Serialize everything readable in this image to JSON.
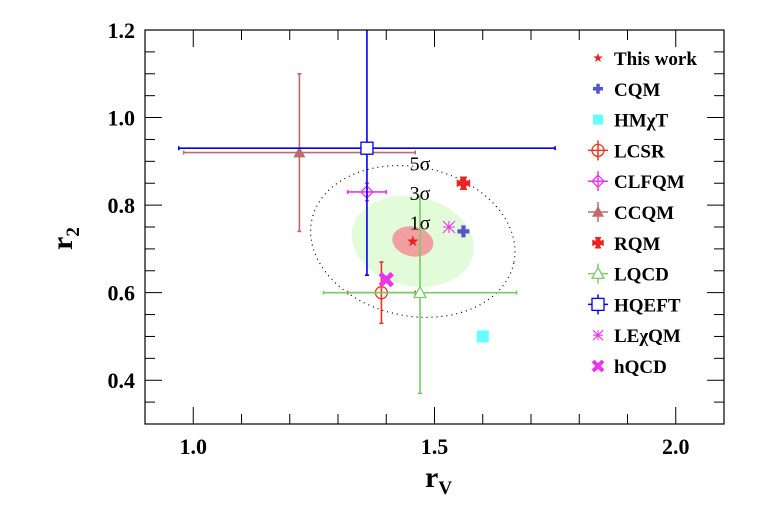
{
  "chart_data": {
    "type": "scatter",
    "xlabel": "r",
    "xlabel_sub": "V",
    "ylabel": "r",
    "ylabel_sub": "2",
    "xlim": [
      0.9,
      2.1
    ],
    "ylim": [
      0.3,
      1.2
    ],
    "xticks": [
      {
        "v": 1.0,
        "label": "1.0"
      },
      {
        "v": 1.5,
        "label": "1.5"
      },
      {
        "v": 2.0,
        "label": "2.0"
      }
    ],
    "yticks": [
      {
        "v": 0.4,
        "label": "0.4"
      },
      {
        "v": 0.6,
        "label": "0.6"
      },
      {
        "v": 0.8,
        "label": "0.8"
      },
      {
        "v": 1.0,
        "label": "1.0"
      },
      {
        "v": 1.2,
        "label": "1.2"
      }
    ],
    "grid": false,
    "legend_position": "right",
    "contours": [
      {
        "label": "5σ",
        "cx": 1.455,
        "cy": 0.717,
        "rx": 0.214,
        "ry": 0.17,
        "style": "dotted",
        "color": "#000000",
        "label_x": 1.47,
        "label_y": 0.897
      },
      {
        "label": "3σ",
        "cx": 1.455,
        "cy": 0.717,
        "rx": 0.128,
        "ry": 0.102,
        "style": "filled",
        "color": "#e2fbd8",
        "label_x": 1.47,
        "label_y": 0.83
      },
      {
        "label": "1σ",
        "cx": 1.455,
        "cy": 0.717,
        "rx": 0.043,
        "ry": 0.034,
        "style": "filled",
        "color": "#f0a0a0",
        "label_x": 1.47,
        "label_y": 0.762
      }
    ],
    "series": [
      {
        "name": "This work",
        "marker": "star",
        "color": "#ee2222",
        "x": 1.455,
        "y": 0.717
      },
      {
        "name": "CQM",
        "marker": "plus-filled",
        "color": "#5555cc",
        "x": 1.56,
        "y": 0.74
      },
      {
        "name": "HMχT",
        "marker": "square-filled",
        "color": "#66ffff",
        "x": 1.6,
        "y": 0.5
      },
      {
        "name": "LCSR",
        "marker": "circle-open",
        "color": "#ee3322",
        "x": 1.39,
        "y": 0.6,
        "xerr": [
          1.32,
          1.46
        ],
        "yerr": [
          0.53,
          0.67
        ]
      },
      {
        "name": "CLFQM",
        "marker": "diamond-open",
        "color": "#ee33ee",
        "x": 1.36,
        "y": 0.83,
        "xerr": [
          1.32,
          1.4
        ],
        "yerr": [
          0.81,
          0.85
        ]
      },
      {
        "name": "CCQM",
        "marker": "triangle-filled",
        "color": "#c06a6a",
        "x": 1.22,
        "y": 0.92,
        "xerr": [
          0.98,
          1.46
        ],
        "yerr": [
          0.74,
          1.1
        ]
      },
      {
        "name": "RQM",
        "marker": "cross-filled",
        "color": "#ee2222",
        "x": 1.56,
        "y": 0.85
      },
      {
        "name": "LQCD",
        "marker": "triangle-open",
        "color": "#77cc66",
        "x": 1.47,
        "y": 0.6,
        "xerr": [
          1.27,
          1.67
        ],
        "yerr": [
          0.37,
          0.82
        ]
      },
      {
        "name": "HQEFT",
        "marker": "square-open",
        "color": "#0000ee",
        "x": 1.36,
        "y": 0.93,
        "xerr": [
          0.97,
          1.75
        ],
        "yerr": [
          0.64,
          1.25
        ]
      },
      {
        "name": "LEχQM",
        "marker": "asterisk-open",
        "color": "#ee33ee",
        "x": 1.53,
        "y": 0.75
      },
      {
        "name": "hQCD",
        "marker": "x-filled",
        "color": "#ee33ee",
        "x": 1.4,
        "y": 0.63
      }
    ]
  }
}
